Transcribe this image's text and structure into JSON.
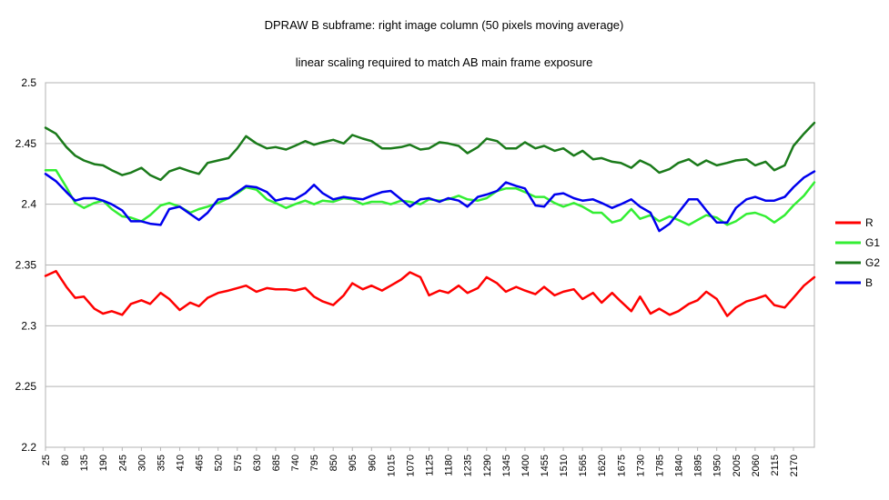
{
  "chart_data": {
    "type": "line",
    "title": "DPRAW B subframe: right image column (50 pixels moving average)",
    "subtitle": "linear scaling required to match AB main frame exposure",
    "xlabel": "",
    "ylabel": "",
    "ylim": [
      2.2,
      2.5
    ],
    "yticks": [
      "2.2",
      "2.25",
      "2.3",
      "2.35",
      "2.4",
      "2.45",
      "2.5"
    ],
    "xlim": [
      25,
      2230
    ],
    "xtick_labels": [
      "25",
      "80",
      "135",
      "190",
      "245",
      "300",
      "355",
      "410",
      "465",
      "520",
      "575",
      "630",
      "685",
      "740",
      "795",
      "850",
      "905",
      "960",
      "1015",
      "1070",
      "1125",
      "1180",
      "1235",
      "1290",
      "1345",
      "1400",
      "1455",
      "1510",
      "1565",
      "1620",
      "1675",
      "1730",
      "1785",
      "1840",
      "1895",
      "1950",
      "2005",
      "2060",
      "2115",
      "2170"
    ],
    "grid": "horizontal",
    "legend": "right",
    "series": [
      {
        "name": "R",
        "color": "#ff0000",
        "x": [
          25,
          55,
          85,
          110,
          135,
          165,
          190,
          215,
          245,
          270,
          300,
          325,
          355,
          380,
          410,
          440,
          465,
          490,
          520,
          550,
          575,
          600,
          630,
          660,
          685,
          715,
          740,
          770,
          795,
          820,
          850,
          880,
          905,
          935,
          960,
          990,
          1015,
          1045,
          1070,
          1100,
          1125,
          1155,
          1180,
          1210,
          1235,
          1265,
          1290,
          1320,
          1345,
          1375,
          1400,
          1430,
          1455,
          1485,
          1510,
          1540,
          1565,
          1595,
          1620,
          1650,
          1675,
          1705,
          1730,
          1760,
          1785,
          1815,
          1840,
          1870,
          1895,
          1920,
          1950,
          1980,
          2005,
          2035,
          2060,
          2090,
          2115,
          2145,
          2170,
          2200,
          2230
        ],
        "y": [
          2.341,
          2.345,
          2.332,
          2.323,
          2.324,
          2.314,
          2.31,
          2.312,
          2.309,
          2.318,
          2.321,
          2.318,
          2.327,
          2.322,
          2.313,
          2.319,
          2.316,
          2.323,
          2.327,
          2.329,
          2.331,
          2.333,
          2.328,
          2.331,
          2.33,
          2.33,
          2.329,
          2.331,
          2.324,
          2.32,
          2.317,
          2.325,
          2.335,
          2.33,
          2.333,
          2.329,
          2.333,
          2.338,
          2.344,
          2.34,
          2.325,
          2.329,
          2.327,
          2.333,
          2.327,
          2.331,
          2.34,
          2.335,
          2.328,
          2.332,
          2.329,
          2.326,
          2.332,
          2.325,
          2.328,
          2.33,
          2.322,
          2.327,
          2.319,
          2.327,
          2.32,
          2.312,
          2.324,
          2.31,
          2.314,
          2.309,
          2.312,
          2.318,
          2.321,
          2.328,
          2.322,
          2.308,
          2.315,
          2.32,
          2.322,
          2.325,
          2.317,
          2.315,
          2.323,
          2.333,
          2.34
        ]
      },
      {
        "name": "G1",
        "color": "#33ee33",
        "x": [
          25,
          55,
          85,
          110,
          135,
          165,
          190,
          215,
          245,
          270,
          300,
          325,
          355,
          380,
          410,
          440,
          465,
          490,
          520,
          550,
          575,
          600,
          630,
          660,
          685,
          715,
          740,
          770,
          795,
          820,
          850,
          880,
          905,
          935,
          960,
          990,
          1015,
          1045,
          1070,
          1100,
          1125,
          1155,
          1180,
          1210,
          1235,
          1265,
          1290,
          1320,
          1345,
          1375,
          1400,
          1430,
          1455,
          1485,
          1510,
          1540,
          1565,
          1595,
          1620,
          1650,
          1675,
          1705,
          1730,
          1760,
          1785,
          1815,
          1840,
          1870,
          1895,
          1920,
          1950,
          1980,
          2005,
          2035,
          2060,
          2090,
          2115,
          2145,
          2170,
          2200,
          2230
        ],
        "y": [
          2.428,
          2.428,
          2.414,
          2.401,
          2.397,
          2.401,
          2.403,
          2.396,
          2.39,
          2.389,
          2.386,
          2.391,
          2.399,
          2.401,
          2.398,
          2.393,
          2.396,
          2.398,
          2.401,
          2.405,
          2.409,
          2.414,
          2.412,
          2.404,
          2.401,
          2.397,
          2.4,
          2.403,
          2.4,
          2.403,
          2.402,
          2.405,
          2.404,
          2.4,
          2.402,
          2.402,
          2.4,
          2.403,
          2.402,
          2.4,
          2.404,
          2.403,
          2.404,
          2.407,
          2.404,
          2.403,
          2.405,
          2.411,
          2.413,
          2.413,
          2.41,
          2.406,
          2.406,
          2.401,
          2.398,
          2.401,
          2.398,
          2.393,
          2.393,
          2.385,
          2.387,
          2.396,
          2.388,
          2.391,
          2.386,
          2.39,
          2.387,
          2.383,
          2.387,
          2.391,
          2.389,
          2.383,
          2.386,
          2.392,
          2.393,
          2.39,
          2.385,
          2.391,
          2.399,
          2.407,
          2.418
        ]
      },
      {
        "name": "G2",
        "color": "#1a7a1a",
        "x": [
          25,
          55,
          85,
          110,
          135,
          165,
          190,
          215,
          245,
          270,
          300,
          325,
          355,
          380,
          410,
          440,
          465,
          490,
          520,
          550,
          575,
          600,
          630,
          660,
          685,
          715,
          740,
          770,
          795,
          820,
          850,
          880,
          905,
          935,
          960,
          990,
          1015,
          1045,
          1070,
          1100,
          1125,
          1155,
          1180,
          1210,
          1235,
          1265,
          1290,
          1320,
          1345,
          1375,
          1400,
          1430,
          1455,
          1485,
          1510,
          1540,
          1565,
          1595,
          1620,
          1650,
          1675,
          1705,
          1730,
          1760,
          1785,
          1815,
          1840,
          1870,
          1895,
          1920,
          1950,
          1980,
          2005,
          2035,
          2060,
          2090,
          2115,
          2145,
          2170,
          2200,
          2230
        ],
        "y": [
          2.463,
          2.458,
          2.447,
          2.44,
          2.436,
          2.433,
          2.432,
          2.428,
          2.424,
          2.426,
          2.43,
          2.424,
          2.42,
          2.427,
          2.43,
          2.427,
          2.425,
          2.434,
          2.436,
          2.438,
          2.446,
          2.456,
          2.45,
          2.446,
          2.447,
          2.445,
          2.448,
          2.452,
          2.449,
          2.451,
          2.453,
          2.45,
          2.457,
          2.454,
          2.452,
          2.446,
          2.446,
          2.447,
          2.449,
          2.445,
          2.446,
          2.451,
          2.45,
          2.448,
          2.442,
          2.447,
          2.454,
          2.452,
          2.446,
          2.446,
          2.451,
          2.446,
          2.448,
          2.444,
          2.446,
          2.44,
          2.444,
          2.437,
          2.438,
          2.435,
          2.434,
          2.43,
          2.436,
          2.432,
          2.426,
          2.429,
          2.434,
          2.437,
          2.432,
          2.436,
          2.432,
          2.434,
          2.436,
          2.437,
          2.432,
          2.435,
          2.428,
          2.432,
          2.448,
          2.458,
          2.467
        ]
      },
      {
        "name": "B",
        "color": "#0000ee",
        "x": [
          25,
          55,
          85,
          110,
          135,
          165,
          190,
          215,
          245,
          270,
          300,
          325,
          355,
          380,
          410,
          440,
          465,
          490,
          520,
          550,
          575,
          600,
          630,
          660,
          685,
          715,
          740,
          770,
          795,
          820,
          850,
          880,
          905,
          935,
          960,
          990,
          1015,
          1045,
          1070,
          1100,
          1125,
          1155,
          1180,
          1210,
          1235,
          1265,
          1290,
          1320,
          1345,
          1375,
          1400,
          1430,
          1455,
          1485,
          1510,
          1540,
          1565,
          1595,
          1620,
          1650,
          1675,
          1705,
          1730,
          1760,
          1785,
          1815,
          1840,
          1870,
          1895,
          1920,
          1950,
          1980,
          2005,
          2035,
          2060,
          2090,
          2115,
          2145,
          2170,
          2200,
          2230
        ],
        "y": [
          2.425,
          2.419,
          2.41,
          2.403,
          2.405,
          2.405,
          2.403,
          2.4,
          2.395,
          2.386,
          2.386,
          2.384,
          2.383,
          2.396,
          2.398,
          2.392,
          2.387,
          2.393,
          2.404,
          2.405,
          2.41,
          2.415,
          2.414,
          2.41,
          2.403,
          2.405,
          2.404,
          2.409,
          2.416,
          2.409,
          2.404,
          2.406,
          2.405,
          2.404,
          2.407,
          2.41,
          2.411,
          2.404,
          2.398,
          2.404,
          2.405,
          2.402,
          2.405,
          2.403,
          2.398,
          2.406,
          2.408,
          2.411,
          2.418,
          2.415,
          2.413,
          2.399,
          2.398,
          2.408,
          2.409,
          2.405,
          2.403,
          2.404,
          2.401,
          2.397,
          2.4,
          2.404,
          2.398,
          2.393,
          2.378,
          2.384,
          2.393,
          2.404,
          2.404,
          2.395,
          2.385,
          2.385,
          2.397,
          2.404,
          2.406,
          2.403,
          2.403,
          2.406,
          2.414,
          2.422,
          2.427
        ]
      }
    ]
  }
}
